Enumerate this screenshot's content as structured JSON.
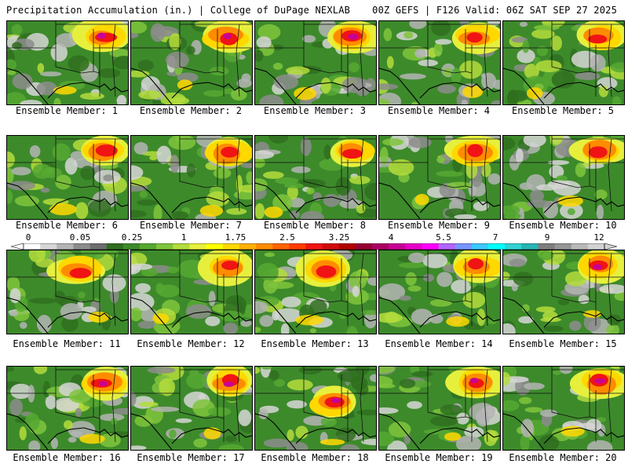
{
  "header": {
    "left": "Precipitation Accumulation (in.) | College of DuPage NEXLAB",
    "right": "00Z GEFS | F126 Valid: 06Z SAT SEP 27 2025"
  },
  "members": [
    {
      "label": "Ensemble Member: 1",
      "rain_center": "northeast"
    },
    {
      "label": "Ensemble Member: 2",
      "rain_center": "northeast"
    },
    {
      "label": "Ensemble Member: 3",
      "rain_center": "northeast"
    },
    {
      "label": "Ensemble Member: 4",
      "rain_center": "northeast"
    },
    {
      "label": "Ensemble Member: 5",
      "rain_center": "northeast"
    },
    {
      "label": "Ensemble Member: 6",
      "rain_center": "northeast"
    },
    {
      "label": "Ensemble Member: 7",
      "rain_center": "northeast"
    },
    {
      "label": "Ensemble Member: 8",
      "rain_center": "northeast"
    },
    {
      "label": "Ensemble Member: 9",
      "rain_center": "northeast"
    },
    {
      "label": "Ensemble Member: 10",
      "rain_center": "northeast"
    },
    {
      "label": "Ensemble Member: 11",
      "rain_center": "north-central"
    },
    {
      "label": "Ensemble Member: 12",
      "rain_center": "northeast"
    },
    {
      "label": "Ensemble Member: 13",
      "rain_center": "north-central"
    },
    {
      "label": "Ensemble Member: 14",
      "rain_center": "northeast"
    },
    {
      "label": "Ensemble Member: 15",
      "rain_center": "northeast"
    },
    {
      "label": "Ensemble Member: 16",
      "rain_center": "northeast"
    },
    {
      "label": "Ensemble Member: 17",
      "rain_center": "northeast"
    },
    {
      "label": "Ensemble Member: 18",
      "rain_center": "central"
    },
    {
      "label": "Ensemble Member: 19",
      "rain_center": "northeast"
    },
    {
      "label": "Ensemble Member: 20",
      "rain_center": "northeast"
    }
  ],
  "colorbar": {
    "tick_labels": [
      "0",
      "0.05",
      "0.25",
      "1",
      "1.75",
      "2.5",
      "3.25",
      "4",
      "5.5",
      "7",
      "9",
      "12"
    ],
    "colors": [
      "#ffffff",
      "#d6d6d6",
      "#b4b4b4",
      "#8c8c8c",
      "#6e6e6e",
      "#2f6e1e",
      "#3d8a2b",
      "#56a832",
      "#7fc43c",
      "#b4dc3c",
      "#e6f03c",
      "#ffff00",
      "#ffd800",
      "#ffb000",
      "#ff8c00",
      "#ff6400",
      "#ff3c00",
      "#f01414",
      "#d20a0a",
      "#b40000",
      "#960032",
      "#aa0064",
      "#c80096",
      "#e600c8",
      "#ff00ff",
      "#b464ff",
      "#7896ff",
      "#3cc8ff",
      "#00ffff",
      "#32d2d2",
      "#28b4b4",
      "#7d7d7d",
      "#969696",
      "#b9b9b9",
      "#d2d2d2"
    ]
  }
}
